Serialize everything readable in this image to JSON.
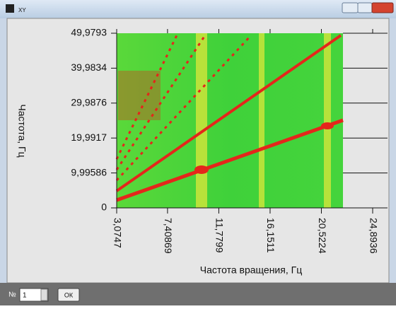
{
  "window": {
    "title": "XY"
  },
  "chart_data": {
    "type": "heatmap",
    "x_label": "Частота вращения, Гц",
    "y_label": "Частота, Гц",
    "xlim": [
      3.0747,
      24.8936
    ],
    "ylim": [
      0,
      49.9793
    ],
    "xticks": [
      {
        "value": 3.0747,
        "label": "3,0747"
      },
      {
        "value": 7.40869,
        "label": "7,40869"
      },
      {
        "value": 11.7799,
        "label": "11,7799"
      },
      {
        "value": 16.1511,
        "label": "16,1511"
      },
      {
        "value": 20.5224,
        "label": "20,5224"
      },
      {
        "value": 24.8936,
        "label": "24,8936"
      }
    ],
    "yticks": [
      0,
      {
        "value": 9.99586,
        "label": "9,99586"
      },
      {
        "value": 19.9917,
        "label": "19,9917"
      },
      {
        "value": 29.9876,
        "label": "29,9876"
      },
      {
        "value": 39.9834,
        "label": "39,9834"
      },
      {
        "value": 49.9793,
        "label": "49,9793"
      }
    ],
    "grid": true
  },
  "controls": {
    "index_label": "№",
    "index_value": 1,
    "button": "ОК"
  }
}
